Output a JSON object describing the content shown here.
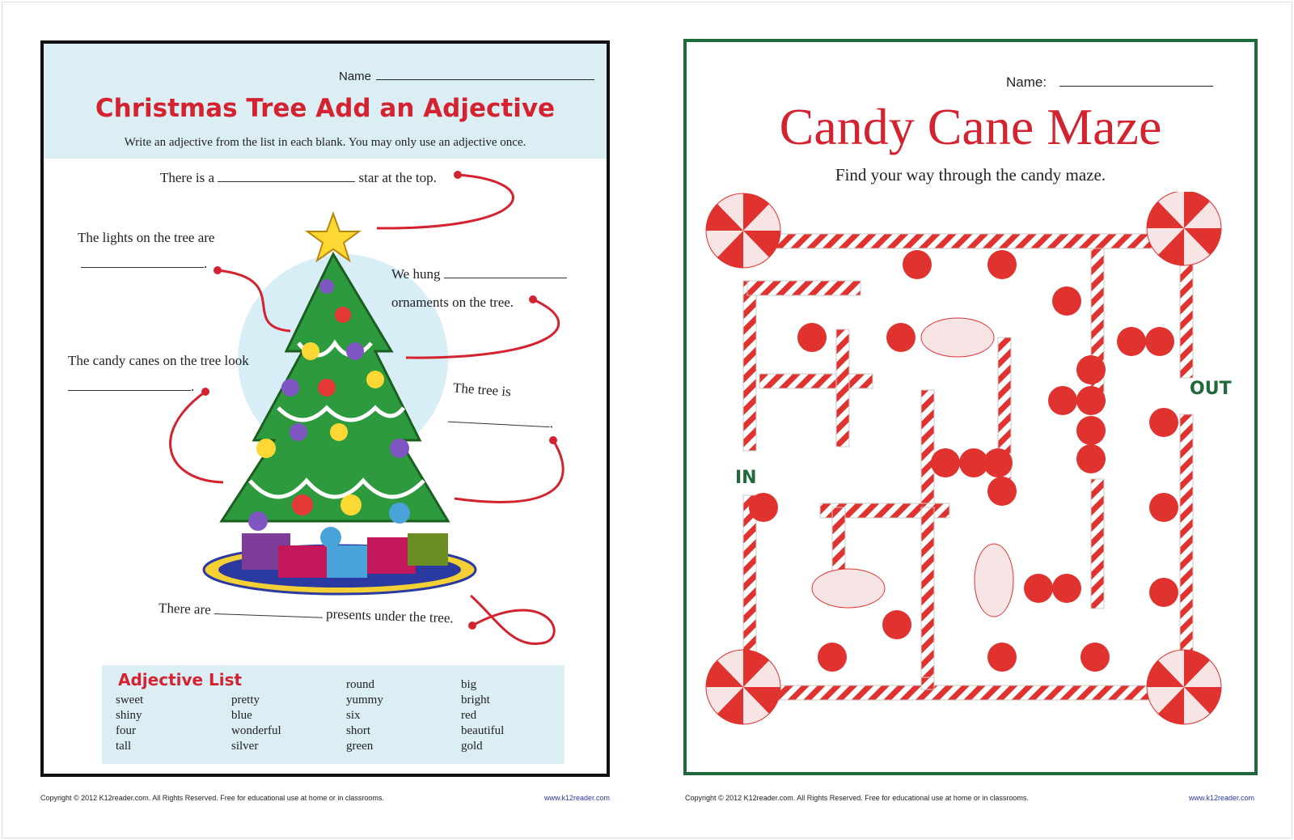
{
  "left_worksheet": {
    "name_label": "Name",
    "title": "Christmas Tree Add an Adjective",
    "instructions": "Write an adjective from the list in each blank. You may only use an adjective once.",
    "sentences": {
      "star_pre": "There is a",
      "star_post": "star at the top.",
      "lights": "The lights on the tree are",
      "hung_pre": "We hung",
      "hung_post": "ornaments on the tree.",
      "candy": "The candy canes on the tree look",
      "tree": "The tree is",
      "presents_pre": "There are",
      "presents_post": "presents under the tree.",
      "period": "."
    },
    "adjective_list": {
      "title": "Adjective List",
      "columns": [
        [
          "sweet",
          "shiny",
          "four",
          "tall"
        ],
        [
          "pretty",
          "blue",
          "wonderful",
          "silver"
        ],
        [
          "round",
          "yummy",
          "six",
          "short",
          "green"
        ],
        [
          "big",
          "bright",
          "red",
          "beautiful",
          "gold"
        ]
      ]
    },
    "footer": {
      "copyright": "Copyright © 2012  K12reader.com. All Rights Reserved. Free for educational use at home or in classrooms.",
      "url": "www.k12reader.com"
    }
  },
  "right_worksheet": {
    "name_label": "Name:",
    "title": "Candy Cane Maze",
    "instructions": "Find your way through the candy maze.",
    "in_label": "IN",
    "out_label": "OUT",
    "footer": {
      "copyright": "Copyright © 2012  K12reader.com. All Rights Reserved. Free for educational use at home or in classrooms.",
      "url": "www.k12reader.com"
    }
  },
  "colors": {
    "red": "#d42330",
    "green": "#1f6a3a",
    "header_blue": "#dbeef3"
  }
}
